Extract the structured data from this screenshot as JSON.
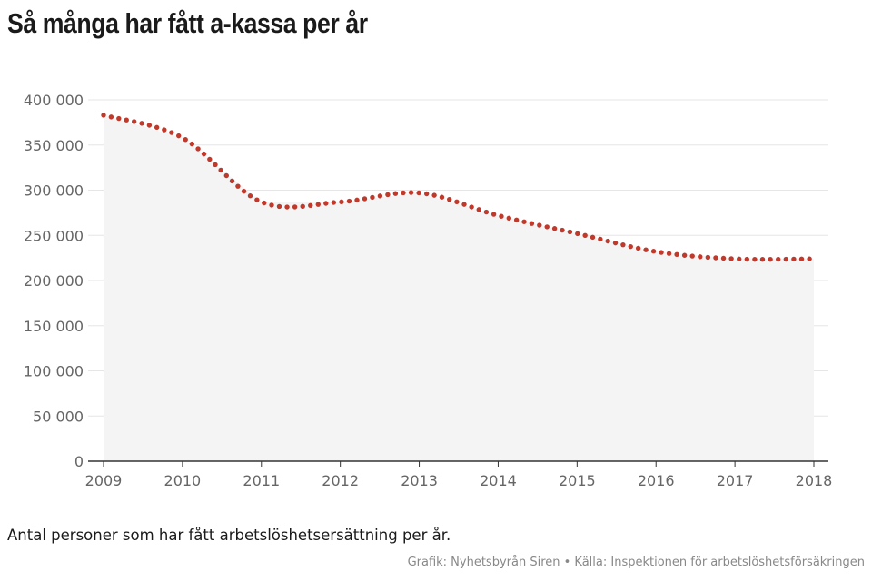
{
  "title": "Så många har fått a-kassa per år",
  "caption": "Antal personer som har fått arbetslöshetsersättning per år.",
  "credit": "Grafik: Nyhetsbyrån Siren • Källa: Inspektionen för arbetslöshetsförsäkringen",
  "colors": {
    "line": "#c0392b",
    "area": "#f4f4f4",
    "grid": "#e6e6e6",
    "axis": "#333333"
  },
  "chart_data": {
    "type": "line",
    "style": "dotted line with shaded area",
    "x": [
      "2009",
      "2010",
      "2011",
      "2012",
      "2013",
      "2014",
      "2015",
      "2016",
      "2017",
      "2018"
    ],
    "series": [
      {
        "values": [
          383000,
          358000,
          287000,
          287000,
          297000,
          272000,
          252000,
          232000,
          224000,
          224000
        ]
      }
    ],
    "ylim": [
      0,
      400000
    ],
    "yticks": [
      0,
      50000,
      100000,
      150000,
      200000,
      250000,
      300000,
      350000,
      400000
    ],
    "ytick_labels": [
      "0",
      "50 000",
      "100 000",
      "150 000",
      "200 000",
      "250 000",
      "300 000",
      "350 000",
      "400 000"
    ],
    "grid": true
  }
}
